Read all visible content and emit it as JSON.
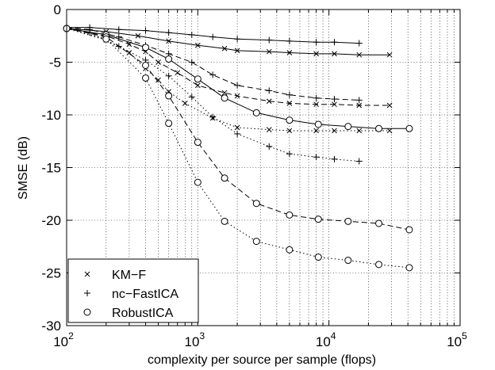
{
  "chart_data": {
    "type": "line",
    "title": "",
    "xlabel": "complexity per source per sample (flops)",
    "ylabel": "SMSE (dB)",
    "x_scale": "log",
    "xlim": [
      100,
      100000
    ],
    "ylim": [
      -30,
      0
    ],
    "x_ticks": [
      {
        "base": "10",
        "exp": "2",
        "value": 100
      },
      {
        "base": "10",
        "exp": "3",
        "value": 1000
      },
      {
        "base": "10",
        "exp": "4",
        "value": 10000
      },
      {
        "base": "10",
        "exp": "5",
        "value": 100000
      }
    ],
    "y_ticks": [
      "0",
      "-5",
      "-10",
      "-15",
      "-20",
      "-25",
      "-30"
    ],
    "y_tick_values": [
      0,
      -5,
      -10,
      -15,
      -20,
      -25,
      -30
    ],
    "grid": "dotted, major and minor",
    "legend": {
      "position": "bottom-left",
      "entries": [
        {
          "label": "KM−F",
          "marker": "x"
        },
        {
          "label": "nc−FastICA",
          "marker": "+"
        },
        {
          "label": "RobustICA",
          "marker": "o"
        }
      ]
    },
    "series": [
      {
        "method": "KM−F",
        "line": "solid",
        "marker": "x",
        "x": [
          100,
          200,
          350,
          600,
          1000,
          1600,
          2000,
          3500,
          5000,
          8000,
          11000,
          17000,
          29000
        ],
        "y": [
          -1.8,
          -2.1,
          -2.5,
          -3.0,
          -3.4,
          -3.7,
          -3.9,
          -4.0,
          -4.1,
          -4.2,
          -4.2,
          -4.3,
          -4.3
        ]
      },
      {
        "method": "KM−F",
        "line": "dashed",
        "marker": "x",
        "x": [
          100,
          200,
          300,
          400,
          500,
          700,
          1000,
          1600,
          2000,
          3500,
          5000,
          8000,
          11000,
          17000,
          29000
        ],
        "y": [
          -1.8,
          -2.5,
          -3.3,
          -4.0,
          -5.0,
          -6.0,
          -7.2,
          -7.9,
          -8.2,
          -8.7,
          -8.9,
          -9.0,
          -9.0,
          -9.1,
          -9.1
        ]
      },
      {
        "method": "KM−F",
        "line": "dotted",
        "marker": "x",
        "x": [
          100,
          200,
          300,
          400,
          500,
          600,
          800,
          1300,
          2000,
          3500,
          5000,
          8000,
          11000,
          17000,
          29000
        ],
        "y": [
          -1.8,
          -2.9,
          -4.1,
          -5.6,
          -6.7,
          -7.8,
          -8.9,
          -10.3,
          -11.2,
          -11.4,
          -11.5,
          -11.5,
          -11.5,
          -11.5,
          -11.5
        ]
      },
      {
        "method": "nc−FastICA",
        "line": "solid",
        "marker": "+",
        "x": [
          100,
          150,
          250,
          400,
          600,
          900,
          1300,
          2000,
          3500,
          5000,
          8000,
          11000,
          17000
        ],
        "y": [
          -1.7,
          -1.7,
          -1.9,
          -2.0,
          -2.2,
          -2.4,
          -2.6,
          -2.8,
          -2.9,
          -3.0,
          -3.1,
          -3.1,
          -3.2
        ]
      },
      {
        "method": "nc−FastICA",
        "line": "dashed",
        "marker": "+",
        "x": [
          100,
          150,
          250,
          400,
          600,
          900,
          1300,
          2000,
          3500,
          5000,
          8000,
          11000,
          17000
        ],
        "y": [
          -1.7,
          -1.9,
          -2.6,
          -3.4,
          -4.2,
          -5.0,
          -6.2,
          -7.2,
          -7.7,
          -8.1,
          -8.4,
          -8.5,
          -8.6
        ]
      },
      {
        "method": "nc−FastICA",
        "line": "dotted",
        "marker": "+",
        "x": [
          100,
          150,
          250,
          400,
          600,
          900,
          1300,
          2000,
          3500,
          5000,
          8000,
          11000,
          17000
        ],
        "y": [
          -1.7,
          -2.2,
          -3.5,
          -4.8,
          -6.3,
          -8.3,
          -10.2,
          -11.8,
          -13.0,
          -13.7,
          -14.0,
          -14.2,
          -14.4
        ]
      },
      {
        "method": "RobustICA",
        "line": "solid",
        "marker": "o",
        "x": [
          100,
          200,
          400,
          600,
          1000,
          1600,
          2800,
          5000,
          8300,
          14000,
          24000,
          41000
        ],
        "y": [
          -1.8,
          -2.4,
          -3.6,
          -4.7,
          -6.6,
          -8.4,
          -9.8,
          -10.5,
          -10.9,
          -11.1,
          -11.3,
          -11.3
        ]
      },
      {
        "method": "RobustICA",
        "line": "dashed",
        "marker": "o",
        "x": [
          100,
          200,
          400,
          600,
          1000,
          1600,
          2800,
          5000,
          8300,
          14000,
          24000,
          41000
        ],
        "y": [
          -1.8,
          -2.6,
          -5.3,
          -8.2,
          -12.6,
          -16.0,
          -18.4,
          -19.5,
          -19.9,
          -20.1,
          -20.3,
          -20.9
        ]
      },
      {
        "method": "RobustICA",
        "line": "dotted",
        "marker": "o",
        "x": [
          100,
          200,
          400,
          600,
          1000,
          1600,
          2800,
          5000,
          8300,
          14000,
          24000,
          41000
        ],
        "y": [
          -1.8,
          -2.8,
          -6.5,
          -10.8,
          -16.4,
          -20.1,
          -22.0,
          -22.8,
          -23.5,
          -23.8,
          -24.2,
          -24.5
        ]
      }
    ]
  }
}
